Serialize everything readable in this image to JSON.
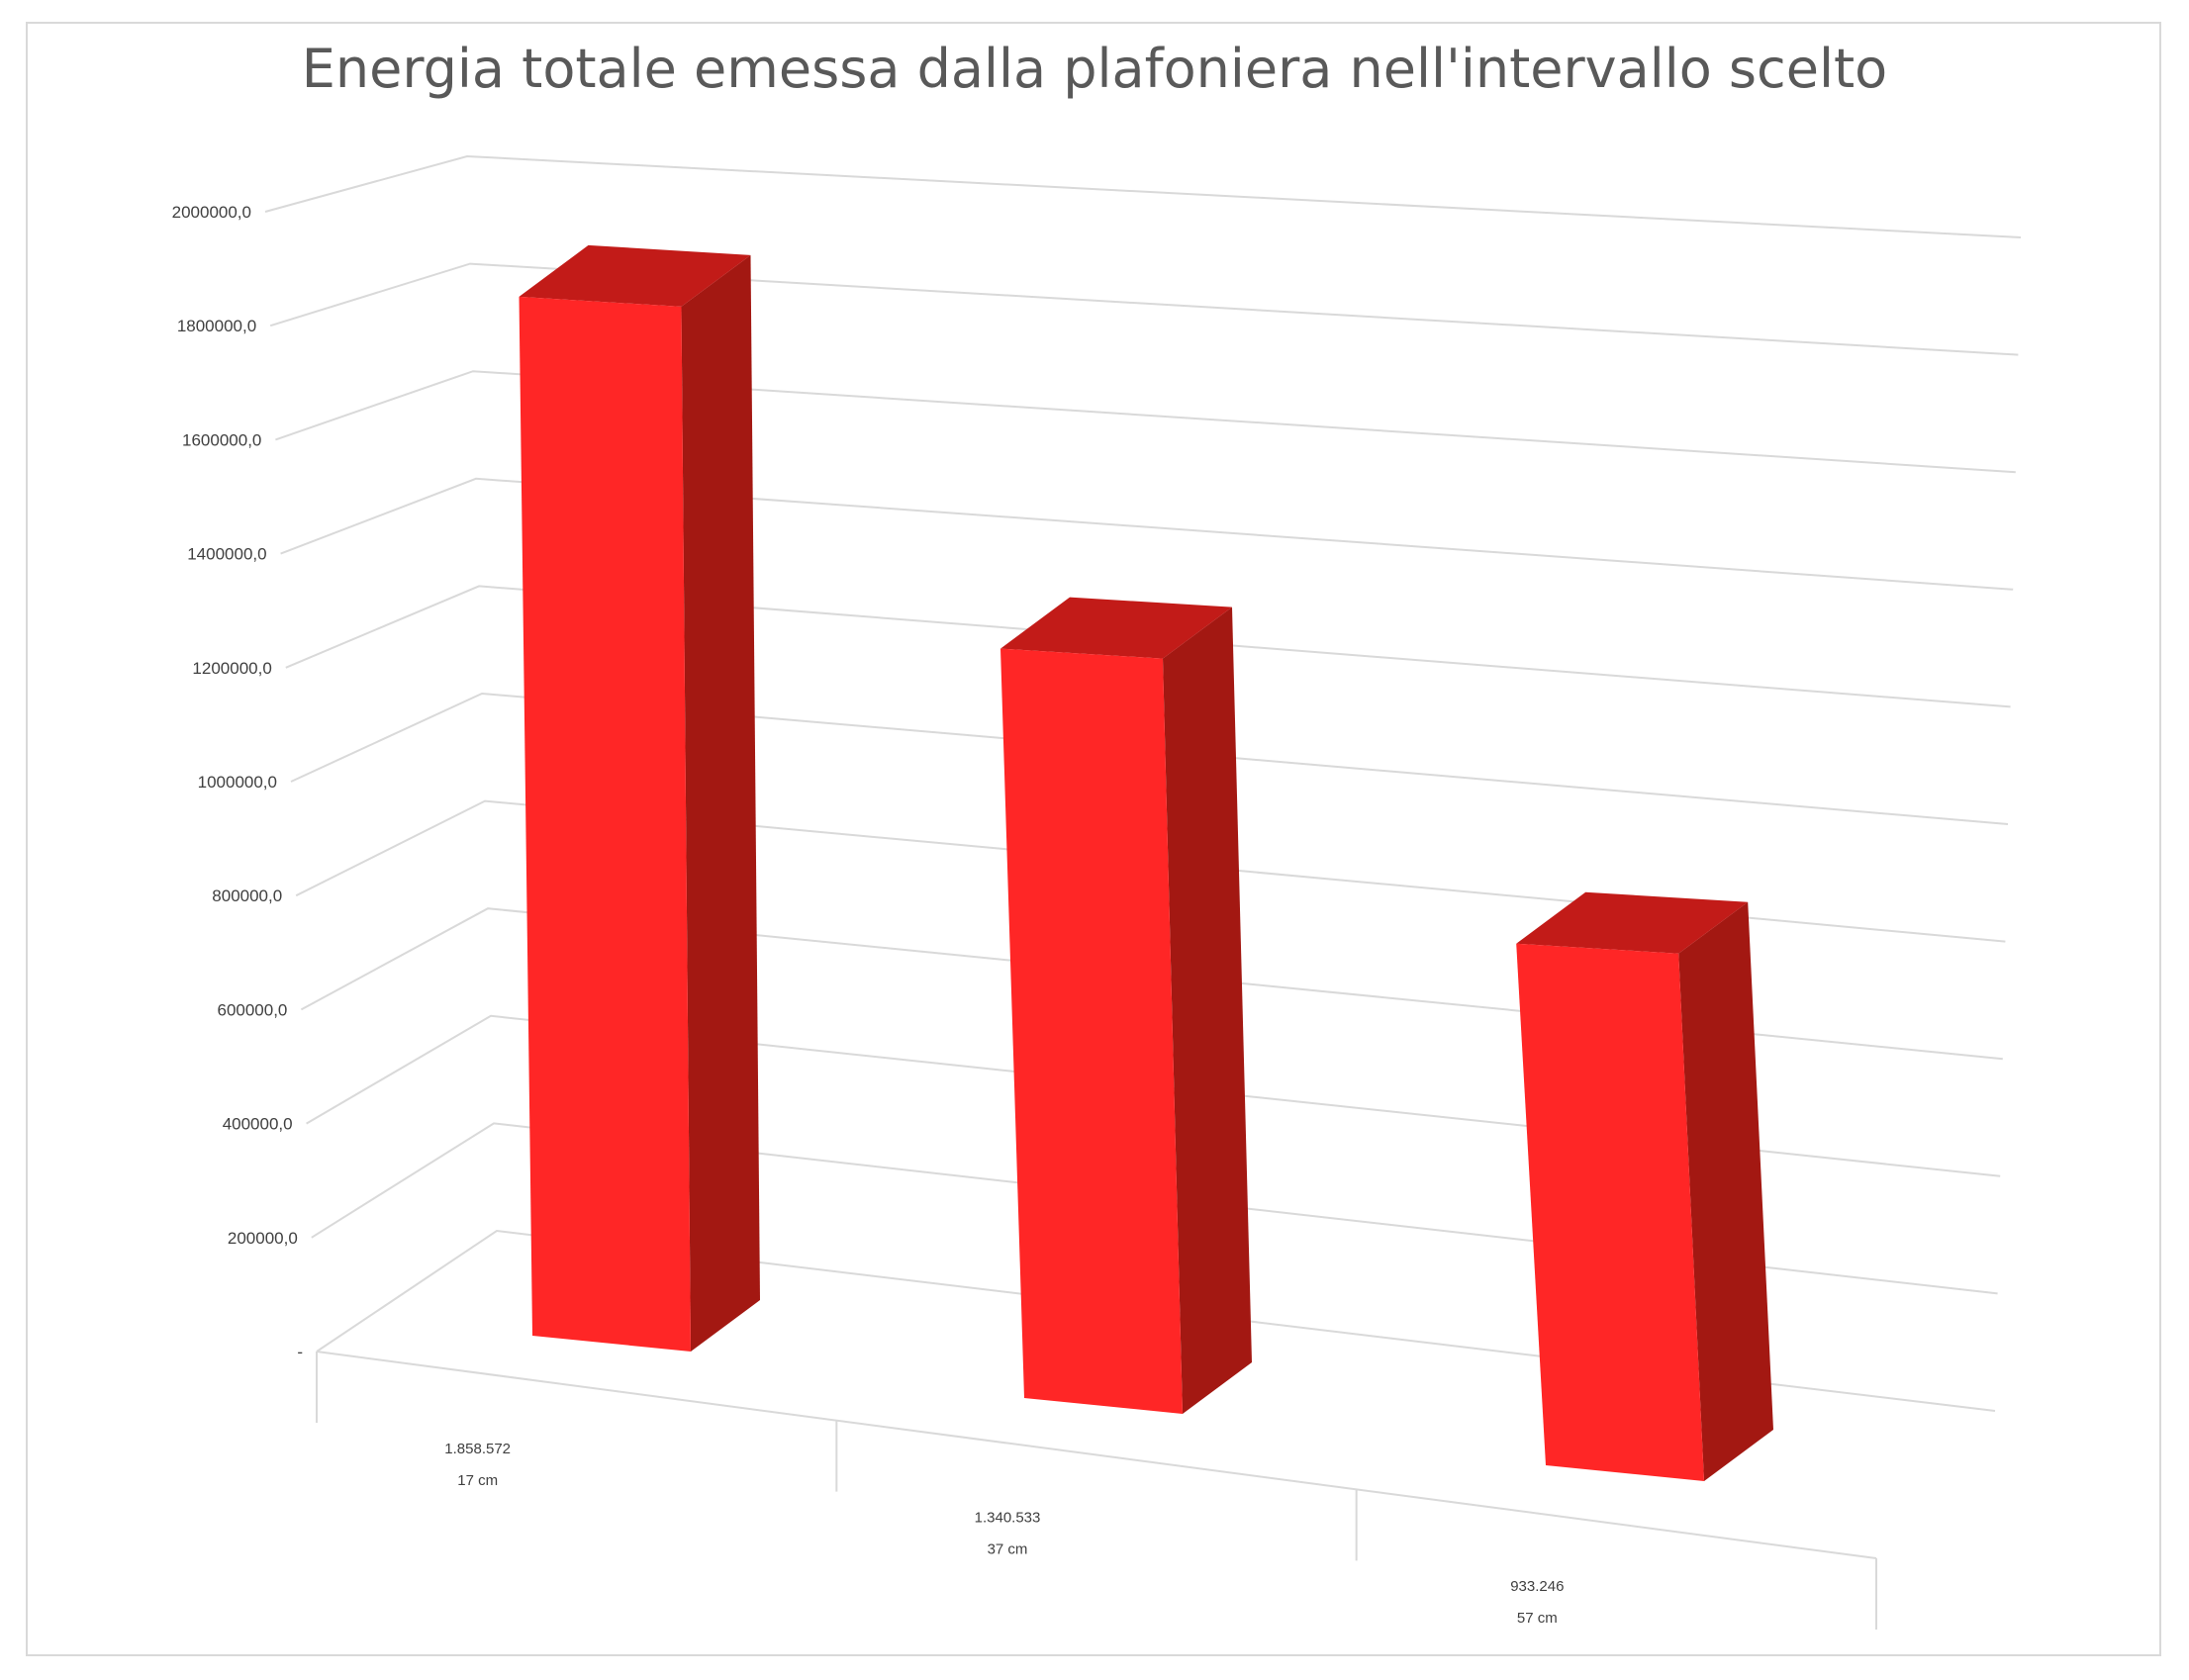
{
  "chart_data": {
    "type": "bar",
    "title": "Energia totale emessa dalla plafoniera nell'intervallo scelto",
    "xlabel": "",
    "ylabel": "",
    "categories": [
      "17 cm",
      "37 cm",
      "57 cm"
    ],
    "category_values": [
      "1.858.572",
      "1.340.533",
      "933.246"
    ],
    "values": [
      1858572,
      1340533,
      933246
    ],
    "ylim": [
      0,
      2000000
    ],
    "yticks": [
      0,
      200000,
      400000,
      600000,
      800000,
      1000000,
      1200000,
      1400000,
      1600000,
      1800000,
      2000000
    ],
    "ytick_labels": [
      "-",
      "200000,0",
      "400000,0",
      "600000,0",
      "800000,0",
      "1000000,0",
      "1200000,0",
      "1400000,0",
      "1600000,0",
      "1800000,0",
      "2000000,0"
    ],
    "grid": true,
    "legend": "none",
    "style": "3d-column",
    "colors": {
      "front": "#ff2626",
      "side": "#a31812",
      "top": "#c21b18",
      "grid": "#d9d9d9",
      "text": "#404040",
      "title": "#595959"
    }
  }
}
